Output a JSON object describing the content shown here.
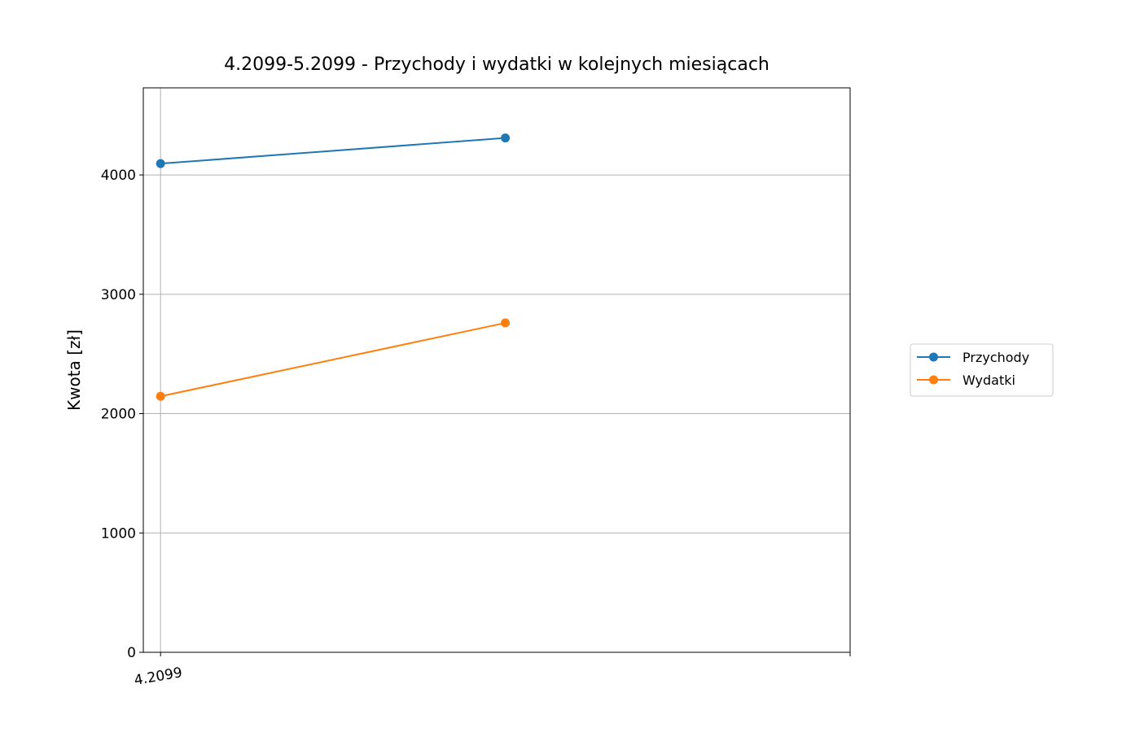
{
  "chart_data": {
    "type": "line",
    "title": "4.2099-5.2099 - Przychody i wydatki w kolejnych miesiącach",
    "xlabel": "",
    "ylabel": "Kwota [zł]",
    "x_index": [
      0,
      1
    ],
    "x_tick_labels": [
      "4.2099"
    ],
    "xlim": [
      -0.05,
      2
    ],
    "ylim": [
      0,
      4730
    ],
    "y_ticks": [
      0,
      1000,
      2000,
      3000,
      4000
    ],
    "grid": true,
    "legend_position": "center right, outside plot",
    "series": [
      {
        "name": "Przychody",
        "color": "#1f77b4",
        "values": [
          4095,
          4310
        ]
      },
      {
        "name": "Wydatki",
        "color": "#ff7f0e",
        "values": [
          2145,
          2760
        ]
      }
    ]
  }
}
